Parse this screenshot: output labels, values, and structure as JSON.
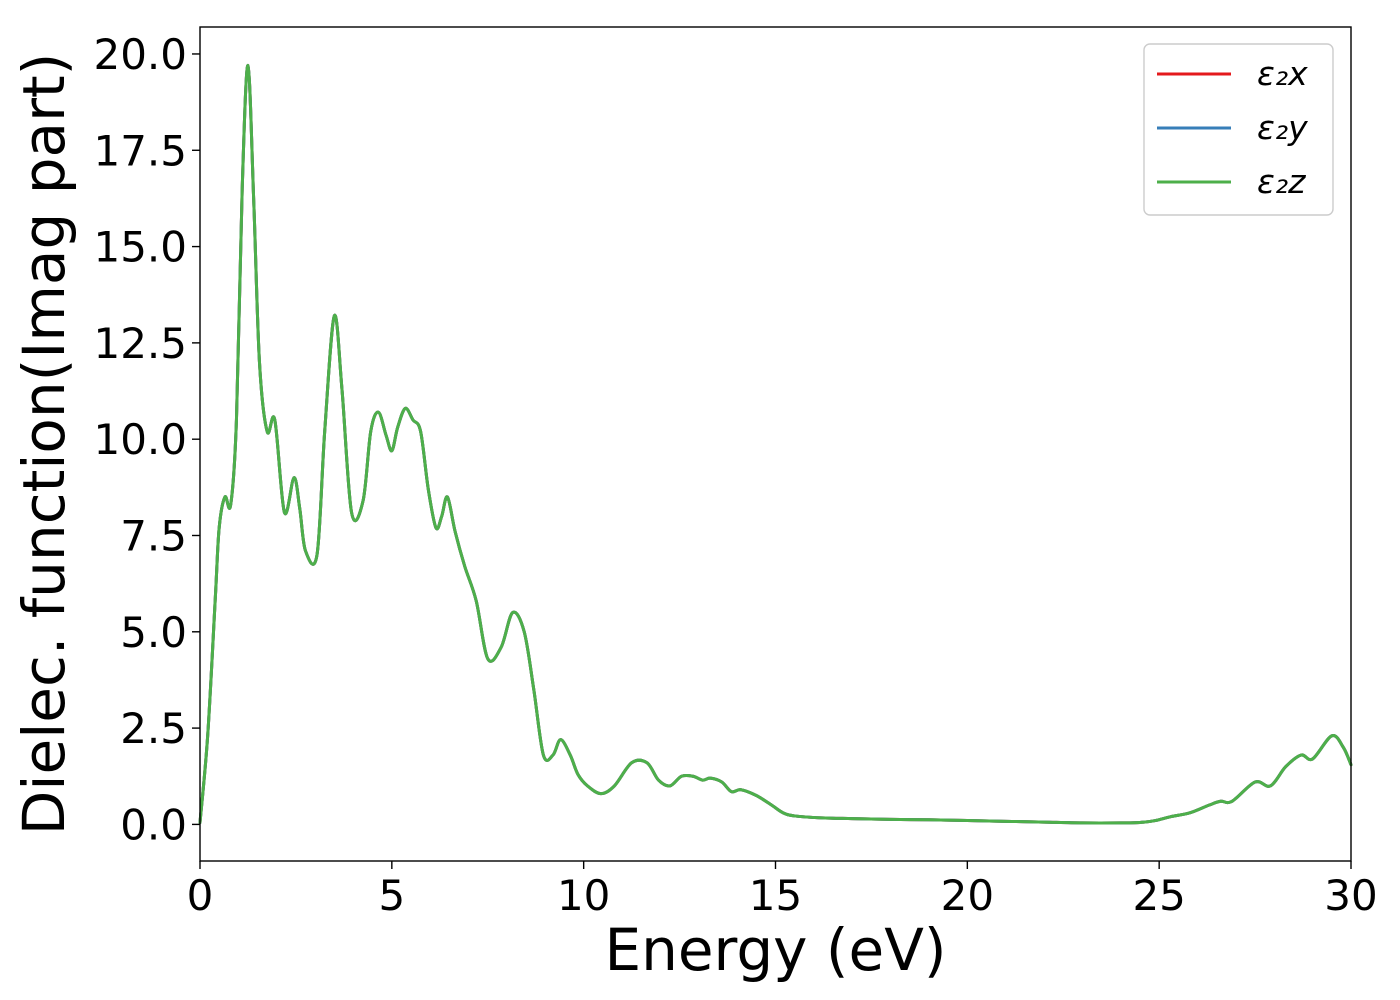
{
  "chart_data": {
    "type": "line",
    "title": "",
    "xlabel": "Energy (eV)",
    "ylabel": "Dielec. function(Imag part)",
    "xlim": [
      0,
      30
    ],
    "ylim": [
      -0.95,
      20.7
    ],
    "xticks": [
      0,
      5,
      10,
      15,
      20,
      25,
      30
    ],
    "yticks": [
      0.0,
      2.5,
      5.0,
      7.5,
      10.0,
      12.5,
      15.0,
      17.5,
      20.0
    ],
    "xtick_labels": [
      "0",
      "5",
      "10",
      "15",
      "20",
      "25",
      "30"
    ],
    "ytick_labels": [
      "0.0",
      "2.5",
      "5.0",
      "7.5",
      "10.0",
      "12.5",
      "15.0",
      "17.5",
      "20.0"
    ],
    "grid": false,
    "legend_position": "top-right",
    "x": [
      0,
      0.2,
      0.4,
      0.5,
      0.65,
      0.8,
      0.95,
      1.1,
      1.25,
      1.4,
      1.55,
      1.75,
      1.95,
      2.2,
      2.45,
      2.6,
      2.75,
      3.05,
      3.25,
      3.5,
      3.7,
      3.95,
      4.25,
      4.45,
      4.65,
      4.85,
      5.0,
      5.15,
      5.35,
      5.55,
      5.75,
      5.95,
      6.15,
      6.3,
      6.45,
      6.65,
      6.9,
      7.2,
      7.5,
      7.85,
      8.15,
      8.45,
      8.7,
      8.95,
      9.2,
      9.4,
      9.65,
      9.85,
      10.1,
      10.45,
      10.8,
      11.25,
      11.65,
      11.95,
      12.25,
      12.55,
      12.85,
      13.1,
      13.3,
      13.6,
      13.85,
      14.1,
      14.5,
      14.9,
      15.2,
      15.5,
      16.2,
      17.0,
      18.0,
      19.0,
      20.0,
      21.0,
      22.0,
      23.0,
      24.0,
      24.5,
      24.9,
      25.3,
      25.8,
      26.3,
      26.6,
      26.9,
      27.5,
      27.9,
      28.3,
      28.7,
      29.0,
      29.5,
      29.8,
      30.0
    ],
    "series": [
      {
        "name": "ε₂x",
        "color": "#e41a1c",
        "values": [
          0.05,
          2.3,
          5.9,
          7.7,
          8.5,
          8.3,
          10.5,
          16.5,
          19.7,
          16.2,
          12.0,
          10.2,
          10.5,
          8.1,
          9.0,
          8.2,
          7.1,
          7.0,
          10.2,
          13.2,
          11.3,
          8.1,
          8.4,
          10.2,
          10.7,
          10.1,
          9.7,
          10.3,
          10.8,
          10.5,
          10.2,
          8.7,
          7.7,
          8.0,
          8.5,
          7.6,
          6.7,
          5.8,
          4.3,
          4.6,
          5.5,
          5.0,
          3.5,
          1.8,
          1.8,
          2.2,
          1.8,
          1.3,
          1.0,
          0.8,
          1.0,
          1.6,
          1.6,
          1.15,
          1.0,
          1.25,
          1.25,
          1.15,
          1.2,
          1.1,
          0.85,
          0.9,
          0.75,
          0.5,
          0.3,
          0.22,
          0.17,
          0.15,
          0.13,
          0.12,
          0.1,
          0.08,
          0.06,
          0.04,
          0.04,
          0.05,
          0.1,
          0.2,
          0.3,
          0.5,
          0.6,
          0.6,
          1.1,
          1.0,
          1.5,
          1.8,
          1.7,
          2.3,
          2.0,
          1.55
        ]
      },
      {
        "name": "ε₂y",
        "color": "#377eb8",
        "values": [
          0.05,
          2.3,
          5.9,
          7.7,
          8.5,
          8.3,
          10.5,
          16.5,
          19.7,
          16.2,
          12.0,
          10.2,
          10.5,
          8.1,
          9.0,
          8.2,
          7.1,
          7.0,
          10.2,
          13.2,
          11.3,
          8.1,
          8.4,
          10.2,
          10.7,
          10.1,
          9.7,
          10.3,
          10.8,
          10.5,
          10.2,
          8.7,
          7.7,
          8.0,
          8.5,
          7.6,
          6.7,
          5.8,
          4.3,
          4.6,
          5.5,
          5.0,
          3.5,
          1.8,
          1.8,
          2.2,
          1.8,
          1.3,
          1.0,
          0.8,
          1.0,
          1.6,
          1.6,
          1.15,
          1.0,
          1.25,
          1.25,
          1.15,
          1.2,
          1.1,
          0.85,
          0.9,
          0.75,
          0.5,
          0.3,
          0.22,
          0.17,
          0.15,
          0.13,
          0.12,
          0.1,
          0.08,
          0.06,
          0.04,
          0.04,
          0.05,
          0.1,
          0.2,
          0.3,
          0.5,
          0.6,
          0.6,
          1.1,
          1.0,
          1.5,
          1.8,
          1.7,
          2.3,
          2.0,
          1.55
        ]
      },
      {
        "name": "ε₂z",
        "color": "#4daf4a",
        "values": [
          0.05,
          2.3,
          5.9,
          7.7,
          8.5,
          8.3,
          10.5,
          16.5,
          19.7,
          16.2,
          12.0,
          10.2,
          10.5,
          8.1,
          9.0,
          8.2,
          7.1,
          7.0,
          10.2,
          13.2,
          11.3,
          8.1,
          8.4,
          10.2,
          10.7,
          10.1,
          9.7,
          10.3,
          10.8,
          10.5,
          10.2,
          8.7,
          7.7,
          8.0,
          8.5,
          7.6,
          6.7,
          5.8,
          4.3,
          4.6,
          5.5,
          5.0,
          3.5,
          1.8,
          1.8,
          2.2,
          1.8,
          1.3,
          1.0,
          0.8,
          1.0,
          1.6,
          1.6,
          1.15,
          1.0,
          1.25,
          1.25,
          1.15,
          1.2,
          1.1,
          0.85,
          0.9,
          0.75,
          0.5,
          0.3,
          0.22,
          0.17,
          0.15,
          0.13,
          0.12,
          0.1,
          0.08,
          0.06,
          0.04,
          0.04,
          0.05,
          0.1,
          0.2,
          0.3,
          0.5,
          0.6,
          0.6,
          1.1,
          1.0,
          1.5,
          1.8,
          1.7,
          2.3,
          2.0,
          1.55
        ]
      }
    ]
  }
}
